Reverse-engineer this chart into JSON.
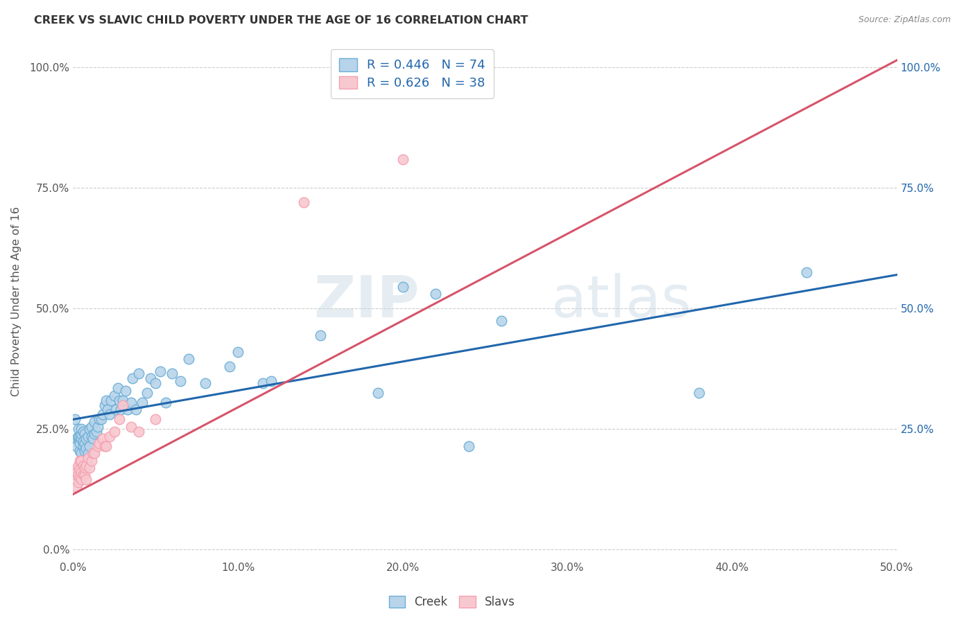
{
  "title": "CREEK VS SLAVIC CHILD POVERTY UNDER THE AGE OF 16 CORRELATION CHART",
  "source": "Source: ZipAtlas.com",
  "xlabel_ticks": [
    "0.0%",
    "10.0%",
    "20.0%",
    "30.0%",
    "40.0%",
    "50.0%"
  ],
  "xlabel_vals": [
    0,
    0.1,
    0.2,
    0.3,
    0.4,
    0.5
  ],
  "ylabel_ticks": [
    "0.0%",
    "25.0%",
    "50.0%",
    "75.0%",
    "100.0%"
  ],
  "ylabel_vals": [
    0,
    0.25,
    0.5,
    0.75,
    1.0
  ],
  "ylabel_right_ticks": [
    "25.0%",
    "50.0%",
    "75.0%",
    "100.0%"
  ],
  "ylabel_right_vals": [
    0.25,
    0.5,
    0.75,
    1.0
  ],
  "xlim": [
    0,
    0.5
  ],
  "ylim": [
    -0.02,
    1.05
  ],
  "creek_R": 0.446,
  "creek_N": 74,
  "slavs_R": 0.626,
  "slavs_N": 38,
  "creek_color": "#6baed6",
  "slavs_color": "#f4a0b0",
  "creek_line_color": "#2166ac",
  "slavs_line_color": "#d6546a",
  "creek_legend_color": "#b8d4ea",
  "slavs_legend_color": "#f8c8d0",
  "legend_text_color": "#2166ac",
  "title_color": "#333333",
  "watermark_color": "#c8d8e8",
  "grid_color": "#cccccc",
  "creek_x": [
    0.001,
    0.002,
    0.002,
    0.003,
    0.003,
    0.003,
    0.004,
    0.004,
    0.004,
    0.005,
    0.005,
    0.005,
    0.005,
    0.006,
    0.006,
    0.006,
    0.007,
    0.007,
    0.007,
    0.008,
    0.008,
    0.009,
    0.009,
    0.01,
    0.01,
    0.011,
    0.011,
    0.012,
    0.013,
    0.013,
    0.014,
    0.015,
    0.016,
    0.017,
    0.018,
    0.019,
    0.02,
    0.021,
    0.022,
    0.023,
    0.025,
    0.026,
    0.027,
    0.028,
    0.029,
    0.03,
    0.032,
    0.033,
    0.035,
    0.036,
    0.038,
    0.04,
    0.042,
    0.045,
    0.047,
    0.05,
    0.053,
    0.056,
    0.06,
    0.065,
    0.07,
    0.08,
    0.095,
    0.1,
    0.115,
    0.12,
    0.15,
    0.185,
    0.2,
    0.22,
    0.24,
    0.26,
    0.38,
    0.445
  ],
  "creek_y": [
    0.27,
    0.23,
    0.215,
    0.23,
    0.235,
    0.25,
    0.205,
    0.22,
    0.235,
    0.23,
    0.24,
    0.2,
    0.25,
    0.215,
    0.225,
    0.245,
    0.205,
    0.22,
    0.24,
    0.21,
    0.23,
    0.2,
    0.235,
    0.215,
    0.25,
    0.235,
    0.255,
    0.23,
    0.24,
    0.265,
    0.245,
    0.255,
    0.27,
    0.27,
    0.28,
    0.3,
    0.31,
    0.29,
    0.28,
    0.31,
    0.32,
    0.29,
    0.335,
    0.31,
    0.29,
    0.31,
    0.33,
    0.29,
    0.305,
    0.355,
    0.29,
    0.365,
    0.305,
    0.325,
    0.355,
    0.345,
    0.37,
    0.305,
    0.365,
    0.35,
    0.395,
    0.345,
    0.38,
    0.41,
    0.345,
    0.35,
    0.445,
    0.325,
    0.545,
    0.53,
    0.215,
    0.475,
    0.325,
    0.575
  ],
  "slavs_x": [
    0.001,
    0.001,
    0.002,
    0.002,
    0.003,
    0.003,
    0.003,
    0.004,
    0.004,
    0.004,
    0.005,
    0.005,
    0.005,
    0.006,
    0.006,
    0.007,
    0.007,
    0.008,
    0.008,
    0.009,
    0.01,
    0.011,
    0.012,
    0.013,
    0.015,
    0.016,
    0.018,
    0.019,
    0.02,
    0.022,
    0.025,
    0.028,
    0.03,
    0.035,
    0.04,
    0.05,
    0.14,
    0.2
  ],
  "slavs_y": [
    0.155,
    0.165,
    0.13,
    0.16,
    0.14,
    0.155,
    0.175,
    0.15,
    0.165,
    0.185,
    0.145,
    0.16,
    0.185,
    0.155,
    0.175,
    0.155,
    0.17,
    0.145,
    0.175,
    0.19,
    0.17,
    0.185,
    0.2,
    0.2,
    0.215,
    0.22,
    0.23,
    0.215,
    0.215,
    0.235,
    0.245,
    0.27,
    0.3,
    0.255,
    0.245,
    0.27,
    0.72,
    0.81
  ],
  "creek_line_x": [
    0,
    0.5
  ],
  "creek_line_y": [
    0.27,
    0.57
  ],
  "slavs_line_x": [
    0.0,
    0.5
  ],
  "slavs_line_y": [
    0.115,
    1.015
  ]
}
